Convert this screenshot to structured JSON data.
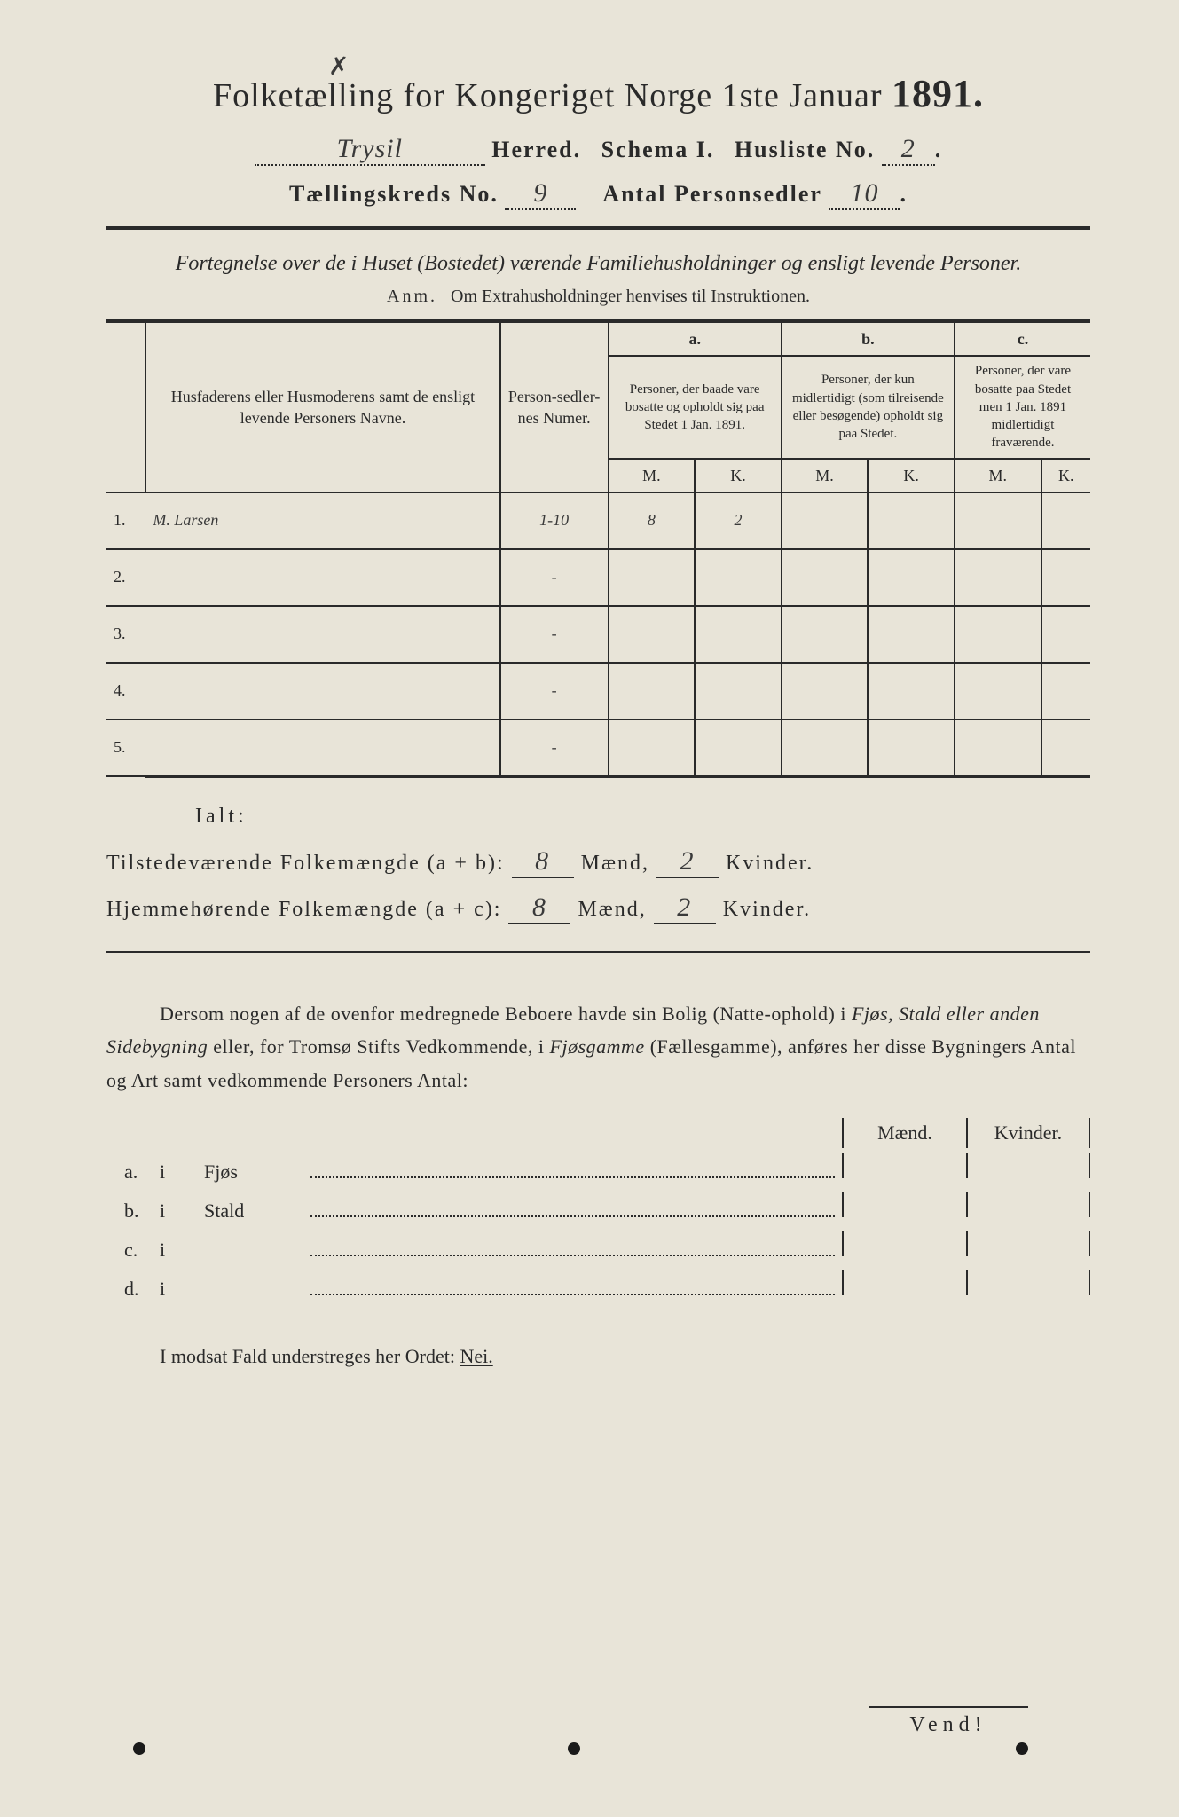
{
  "header": {
    "title_prefix": "Folketælling for Kongeriget Norge 1ste Januar",
    "year": "1891.",
    "herred_value": "Trysil",
    "herred_label": "Herred.",
    "schema_label": "Schema I.",
    "husliste_label": "Husliste No.",
    "husliste_value": "2",
    "kreds_label": "Tællingskreds No.",
    "kreds_value": "9",
    "antal_label": "Antal Personsedler",
    "antal_value": "10"
  },
  "section1": {
    "heading": "Fortegnelse over de i Huset (Bostedet) værende Familiehusholdninger og ensligt levende Personer.",
    "anm_label": "Anm.",
    "anm_text": "Om Extrahusholdninger henvises til Instruktionen."
  },
  "table": {
    "col_name": "Husfaderens eller Husmoderens samt de ensligt levende Personers Navne.",
    "col_num": "Person-sedler-nes Numer.",
    "col_a_label": "a.",
    "col_a": "Personer, der baade vare bosatte og opholdt sig paa Stedet 1 Jan. 1891.",
    "col_b_label": "b.",
    "col_b": "Personer, der kun midlertidigt (som tilreisende eller besøgende) opholdt sig paa Stedet.",
    "col_c_label": "c.",
    "col_c": "Personer, der vare bosatte paa Stedet men 1 Jan. 1891 midlertidigt fraværende.",
    "m": "M.",
    "k": "K.",
    "rows": [
      {
        "n": "1.",
        "name": "M. Larsen",
        "num": "1-10",
        "am": "8",
        "ak": "2",
        "bm": "",
        "bk": "",
        "cm": "",
        "ck": ""
      },
      {
        "n": "2.",
        "name": "",
        "num": "-",
        "am": "",
        "ak": "",
        "bm": "",
        "bk": "",
        "cm": "",
        "ck": ""
      },
      {
        "n": "3.",
        "name": "",
        "num": "-",
        "am": "",
        "ak": "",
        "bm": "",
        "bk": "",
        "cm": "",
        "ck": ""
      },
      {
        "n": "4.",
        "name": "",
        "num": "-",
        "am": "",
        "ak": "",
        "bm": "",
        "bk": "",
        "cm": "",
        "ck": ""
      },
      {
        "n": "5.",
        "name": "",
        "num": "-",
        "am": "",
        "ak": "",
        "bm": "",
        "bk": "",
        "cm": "",
        "ck": ""
      }
    ]
  },
  "totals": {
    "ialt": "Ialt:",
    "line1_label": "Tilstedeværende Folkemængde (a + b):",
    "line2_label": "Hjemmehørende Folkemængde (a + c):",
    "maend": "Mænd,",
    "kvinder": "Kvinder.",
    "l1_m": "8",
    "l1_k": "2",
    "l2_m": "8",
    "l2_k": "2"
  },
  "bodytext": {
    "p1a": "Dersom nogen af de ovenfor medregnede Beboere havde sin Bolig (Natte-ophold) i ",
    "p1b": "Fjøs, Stald eller anden Sidebygning",
    "p1c": " eller, for Tromsø Stifts Vedkommende, i ",
    "p1d": "Fjøsgamme",
    "p1e": " (Fællesgamme), anføres her disse Bygningers Antal og Art samt vedkommende Personers Antal:"
  },
  "outbuildings": {
    "maend": "Mænd.",
    "kvinder": "Kvinder.",
    "rows": [
      {
        "label": "a.",
        "i": "i",
        "name": "Fjøs"
      },
      {
        "label": "b.",
        "i": "i",
        "name": "Stald"
      },
      {
        "label": "c.",
        "i": "i",
        "name": ""
      },
      {
        "label": "d.",
        "i": "i",
        "name": ""
      }
    ]
  },
  "footer": {
    "nei_line": "I modsat Fald understreges her Ordet: ",
    "nei": "Nei.",
    "vend": "Vend!"
  }
}
